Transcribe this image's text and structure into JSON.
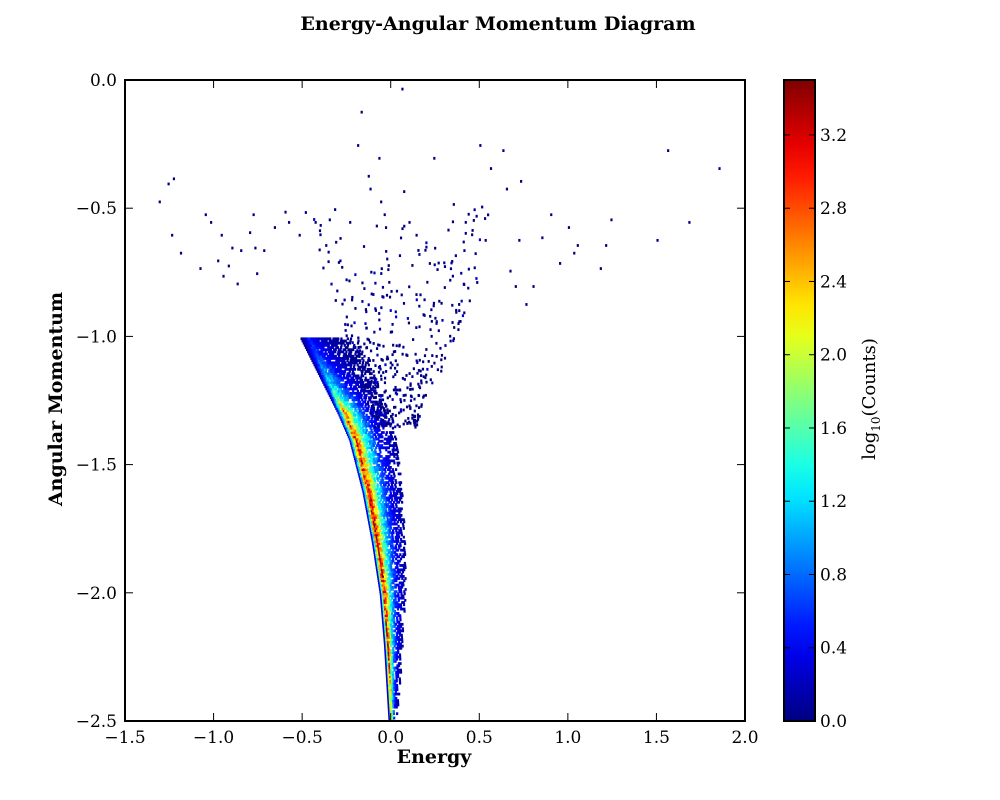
{
  "chart_data": {
    "type": "heatmap",
    "title": "Energy-Angular Momentum Diagram",
    "xlabel": "Energy",
    "ylabel": "Angular Momentum",
    "xlim": [
      -1.5,
      2.0
    ],
    "ylim": [
      -2.5,
      0.0
    ],
    "xticks": [
      -1.5,
      -1.0,
      -0.5,
      0.0,
      0.5,
      1.0,
      1.5,
      2.0
    ],
    "xtick_labels": [
      "−1.5",
      "−1.0",
      "−0.5",
      "0.0",
      "0.5",
      "1.0",
      "1.5",
      "2.0"
    ],
    "yticks": [
      0.0,
      -0.5,
      -1.0,
      -1.5,
      -2.0,
      -2.5
    ],
    "ytick_labels": [
      "0.0",
      "−0.5",
      "−1.0",
      "−1.5",
      "−2.0",
      "−2.5"
    ],
    "grid": false,
    "colormap": "jet",
    "colorbar": {
      "label_main": "log",
      "label_sub": "10",
      "label_rest": "(Counts)",
      "range": [
        0.0,
        3.5
      ],
      "ticks": [
        0.0,
        0.4,
        0.8,
        1.2,
        1.6,
        2.0,
        2.4,
        2.8,
        3.2
      ],
      "tick_labels": [
        "0.0",
        "0.4",
        "0.8",
        "1.2",
        "1.6",
        "2.0",
        "2.4",
        "2.8",
        "3.2"
      ]
    },
    "distribution": {
      "description_values": "cells along the curve E = 0.14*(2.5 + L) - 0.28*(2.5 + L)^2 ... ridge values",
      "ridge": [
        {
          "L": -2.5,
          "E": 0.0,
          "peak": 2.6
        },
        {
          "L": -2.2,
          "E": -0.02,
          "peak": 3.1
        },
        {
          "L": -2.0,
          "E": -0.04,
          "peak": 3.3
        },
        {
          "L": -1.8,
          "E": -0.08,
          "peak": 3.4
        },
        {
          "L": -1.6,
          "E": -0.13,
          "peak": 3.3
        },
        {
          "L": -1.4,
          "E": -0.2,
          "peak": 3.1
        },
        {
          "L": -1.3,
          "E": -0.26,
          "peak": 2.7
        },
        {
          "L": -1.2,
          "E": -0.33,
          "peak": 1.5
        },
        {
          "L": -1.1,
          "E": -0.4,
          "peak": 0.9
        },
        {
          "L": -1.0,
          "E": -0.47,
          "peak": 0.5
        }
      ],
      "sparse_points": [
        [
          -1.31,
          -0.47
        ],
        [
          -1.26,
          -0.4
        ],
        [
          -1.23,
          -0.38
        ],
        [
          -1.24,
          -0.6
        ],
        [
          -1.19,
          -0.67
        ],
        [
          -1.08,
          -0.73
        ],
        [
          -1.05,
          -0.52
        ],
        [
          -1.02,
          -0.55
        ],
        [
          -0.98,
          -0.7
        ],
        [
          -0.96,
          -0.6
        ],
        [
          -0.95,
          -0.76
        ],
        [
          -0.92,
          -0.72
        ],
        [
          -0.9,
          -0.65
        ],
        [
          -0.87,
          -0.79
        ],
        [
          -0.85,
          -0.66
        ],
        [
          -0.8,
          -0.59
        ],
        [
          -0.78,
          -0.52
        ],
        [
          -0.77,
          -0.65
        ],
        [
          -0.76,
          -0.75
        ],
        [
          -0.72,
          -0.66
        ],
        [
          -0.66,
          -0.57
        ],
        [
          -0.6,
          -0.51
        ],
        [
          -0.58,
          -0.55
        ],
        [
          -0.52,
          -0.6
        ],
        [
          -0.43,
          -0.55
        ],
        [
          -0.37,
          -0.64
        ],
        [
          -0.35,
          -0.54
        ],
        [
          -0.32,
          -0.5
        ],
        [
          -0.29,
          -0.7
        ],
        [
          -0.19,
          -0.25
        ],
        [
          -0.17,
          -0.12
        ],
        [
          -0.13,
          -0.37
        ],
        [
          -0.12,
          -0.42
        ],
        [
          -0.07,
          -0.3
        ],
        [
          -0.06,
          -0.47
        ],
        [
          -0.04,
          -0.52
        ],
        [
          0.06,
          -0.03
        ],
        [
          0.07,
          -0.43
        ],
        [
          0.1,
          -0.55
        ],
        [
          0.14,
          -0.6
        ],
        [
          0.24,
          -0.3
        ],
        [
          0.32,
          -0.58
        ],
        [
          0.35,
          -0.48
        ],
        [
          0.41,
          -0.66
        ],
        [
          0.5,
          -0.25
        ],
        [
          0.51,
          -0.49
        ],
        [
          0.53,
          -0.62
        ],
        [
          0.56,
          -0.34
        ],
        [
          0.63,
          -0.27
        ],
        [
          0.65,
          -0.42
        ],
        [
          0.67,
          -0.74
        ],
        [
          0.7,
          -0.8
        ],
        [
          0.72,
          -0.62
        ],
        [
          0.73,
          -0.39
        ],
        [
          0.76,
          -0.87
        ],
        [
          0.8,
          -0.8
        ],
        [
          0.85,
          -0.61
        ],
        [
          0.9,
          -0.52
        ],
        [
          0.95,
          -0.71
        ],
        [
          1.0,
          -0.57
        ],
        [
          1.03,
          -0.67
        ],
        [
          1.05,
          -0.64
        ],
        [
          1.18,
          -0.73
        ],
        [
          1.21,
          -0.64
        ],
        [
          1.24,
          -0.54
        ],
        [
          1.5,
          -0.62
        ],
        [
          1.56,
          -0.27
        ],
        [
          1.68,
          -0.55
        ],
        [
          1.85,
          -0.34
        ]
      ]
    }
  }
}
